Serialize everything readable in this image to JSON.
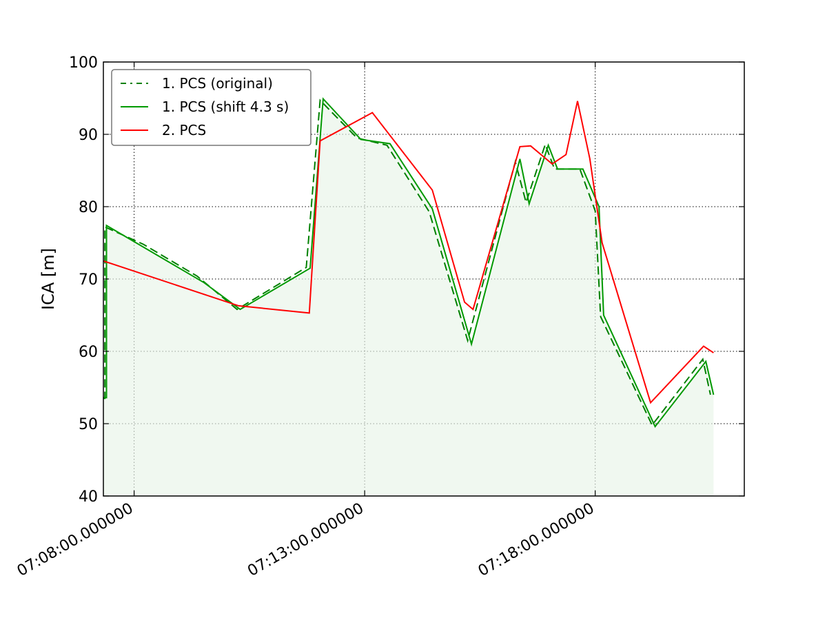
{
  "chart_data": {
    "type": "line",
    "title": "",
    "xlabel": "",
    "ylabel": "ICA [m]",
    "ylim": [
      40,
      100
    ],
    "xlim": [
      "07:07:20",
      "07:21:14"
    ],
    "grid": true,
    "legend_position": "top-left",
    "x_tick_values": [
      "07:08:00",
      "07:13:00",
      "07:18:00"
    ],
    "x_tick_labels": [
      "07:08:00.000000",
      "07:13:00.000000",
      "07:18:00.000000"
    ],
    "y_ticks": [
      40,
      50,
      60,
      70,
      80,
      90,
      100
    ],
    "series": [
      {
        "name": "1. PCS (original)",
        "color": "#008000",
        "style": "dashed",
        "points": [
          [
            "07:07:20",
            53.5
          ],
          [
            "07:07:22",
            53.5
          ],
          [
            "07:07:22",
            77.2
          ],
          [
            "07:08:12",
            74.8
          ],
          [
            "07:09:22",
            70.4
          ],
          [
            "07:10:14",
            65.8
          ],
          [
            "07:11:44",
            71.6
          ],
          [
            "07:12:02",
            94.7
          ],
          [
            "07:12:50",
            89.5
          ],
          [
            "07:13:29",
            88.5
          ],
          [
            "07:14:24",
            79.3
          ],
          [
            "07:15:14",
            61.5
          ],
          [
            "07:16:16",
            86.2
          ],
          [
            "07:16:30",
            80.6
          ],
          [
            "07:16:55",
            88.6
          ],
          [
            "07:17:07",
            85.2
          ],
          [
            "07:17:40",
            85.2
          ],
          [
            "07:18:00",
            79.4
          ],
          [
            "07:18:07",
            64.8
          ],
          [
            "07:19:14",
            49.8
          ],
          [
            "07:20:20",
            58.9
          ],
          [
            "07:20:30",
            54.0
          ]
        ]
      },
      {
        "name": "1. PCS (shift 4.3 s)",
        "color": "#009900",
        "style": "solid",
        "points": [
          [
            "07:07:20",
            53.6
          ],
          [
            "07:07:24",
            53.6
          ],
          [
            "07:07:24",
            77.4
          ],
          [
            "07:09:31",
            69.5
          ],
          [
            "07:10:18",
            65.8
          ],
          [
            "07:11:49",
            71.5
          ],
          [
            "07:12:06",
            94.9
          ],
          [
            "07:12:55",
            89.3
          ],
          [
            "07:13:33",
            88.7
          ],
          [
            "07:14:28",
            79.7
          ],
          [
            "07:15:19",
            61.0
          ],
          [
            "07:16:22",
            86.6
          ],
          [
            "07:16:34",
            80.4
          ],
          [
            "07:16:59",
            88.5
          ],
          [
            "07:17:11",
            85.2
          ],
          [
            "07:17:44",
            85.2
          ],
          [
            "07:18:05",
            80.0
          ],
          [
            "07:18:11",
            65.0
          ],
          [
            "07:19:18",
            49.6
          ],
          [
            "07:20:24",
            58.6
          ],
          [
            "07:20:34",
            54.0
          ]
        ]
      },
      {
        "name": "2. PCS",
        "color": "#ff0000",
        "style": "solid",
        "points": [
          [
            "07:07:20",
            72.5
          ],
          [
            "07:10:16",
            66.3
          ],
          [
            "07:11:48",
            65.3
          ],
          [
            "07:12:02",
            89.1
          ],
          [
            "07:13:10",
            93.0
          ],
          [
            "07:14:28",
            82.3
          ],
          [
            "07:15:10",
            66.8
          ],
          [
            "07:15:21",
            65.8
          ],
          [
            "07:16:22",
            88.3
          ],
          [
            "07:16:36",
            88.4
          ],
          [
            "07:17:04",
            85.9
          ],
          [
            "07:17:22",
            87.2
          ],
          [
            "07:17:37",
            94.6
          ],
          [
            "07:17:53",
            86.6
          ],
          [
            "07:18:09",
            75.0
          ],
          [
            "07:19:12",
            52.9
          ],
          [
            "07:20:21",
            60.7
          ],
          [
            "07:20:34",
            59.8
          ]
        ]
      }
    ]
  }
}
